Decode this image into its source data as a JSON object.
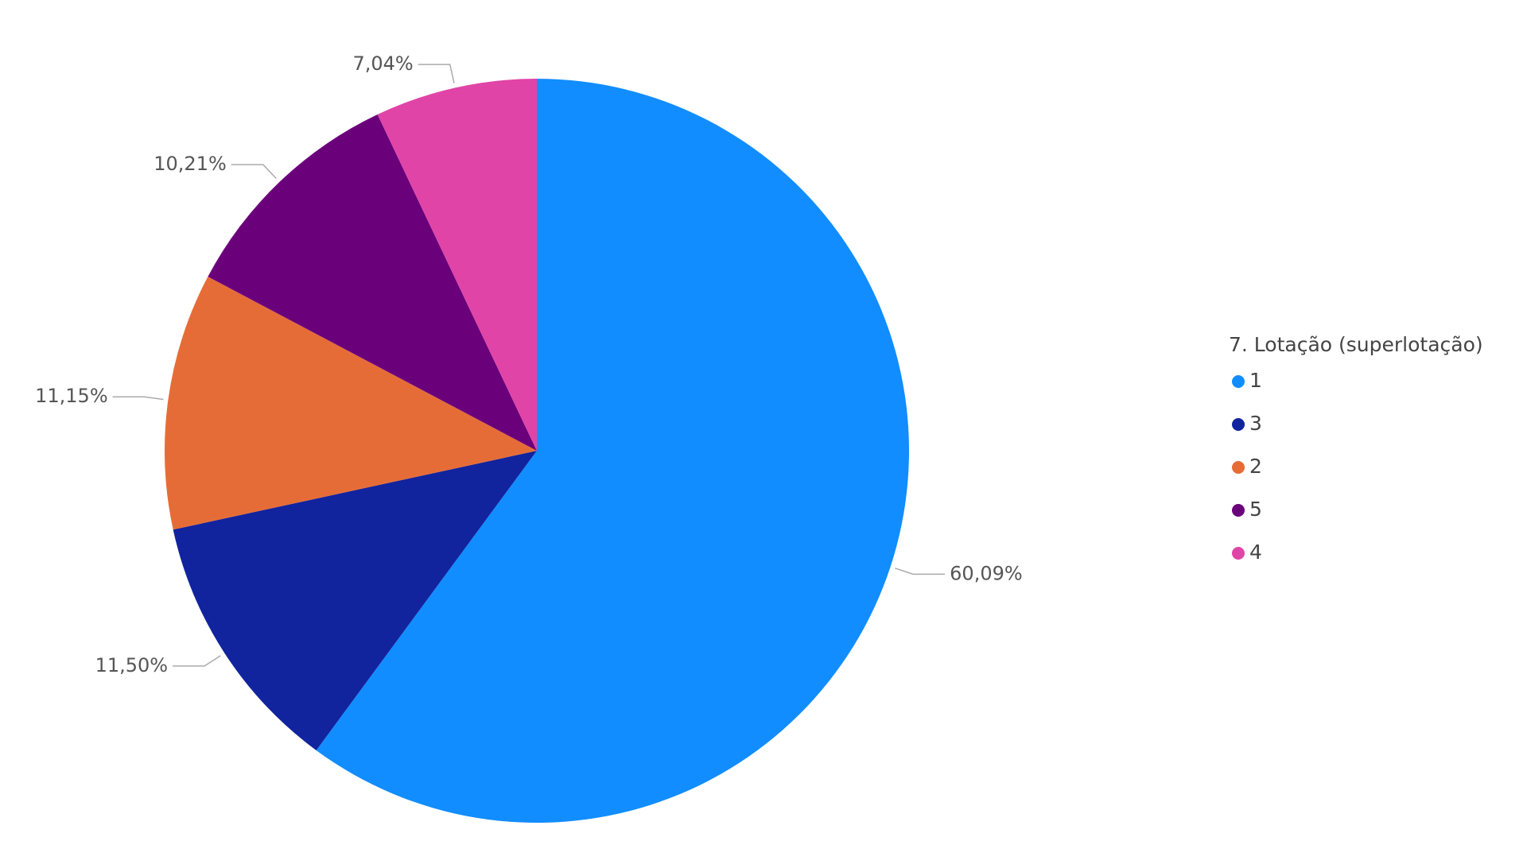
{
  "chart_data": {
    "type": "pie",
    "legend_title": "7. Lotação (superlotação)",
    "categories": [
      "1",
      "3",
      "2",
      "5",
      "4"
    ],
    "values": [
      60.09,
      11.5,
      11.15,
      10.21,
      7.04
    ],
    "value_labels": [
      "60,09%",
      "11,50%",
      "11,15%",
      "10,21%",
      "7,04%"
    ],
    "colors": [
      "#118DFF",
      "#12239E",
      "#E66C37",
      "#6B007B",
      "#E044A7"
    ],
    "legend": "right"
  }
}
